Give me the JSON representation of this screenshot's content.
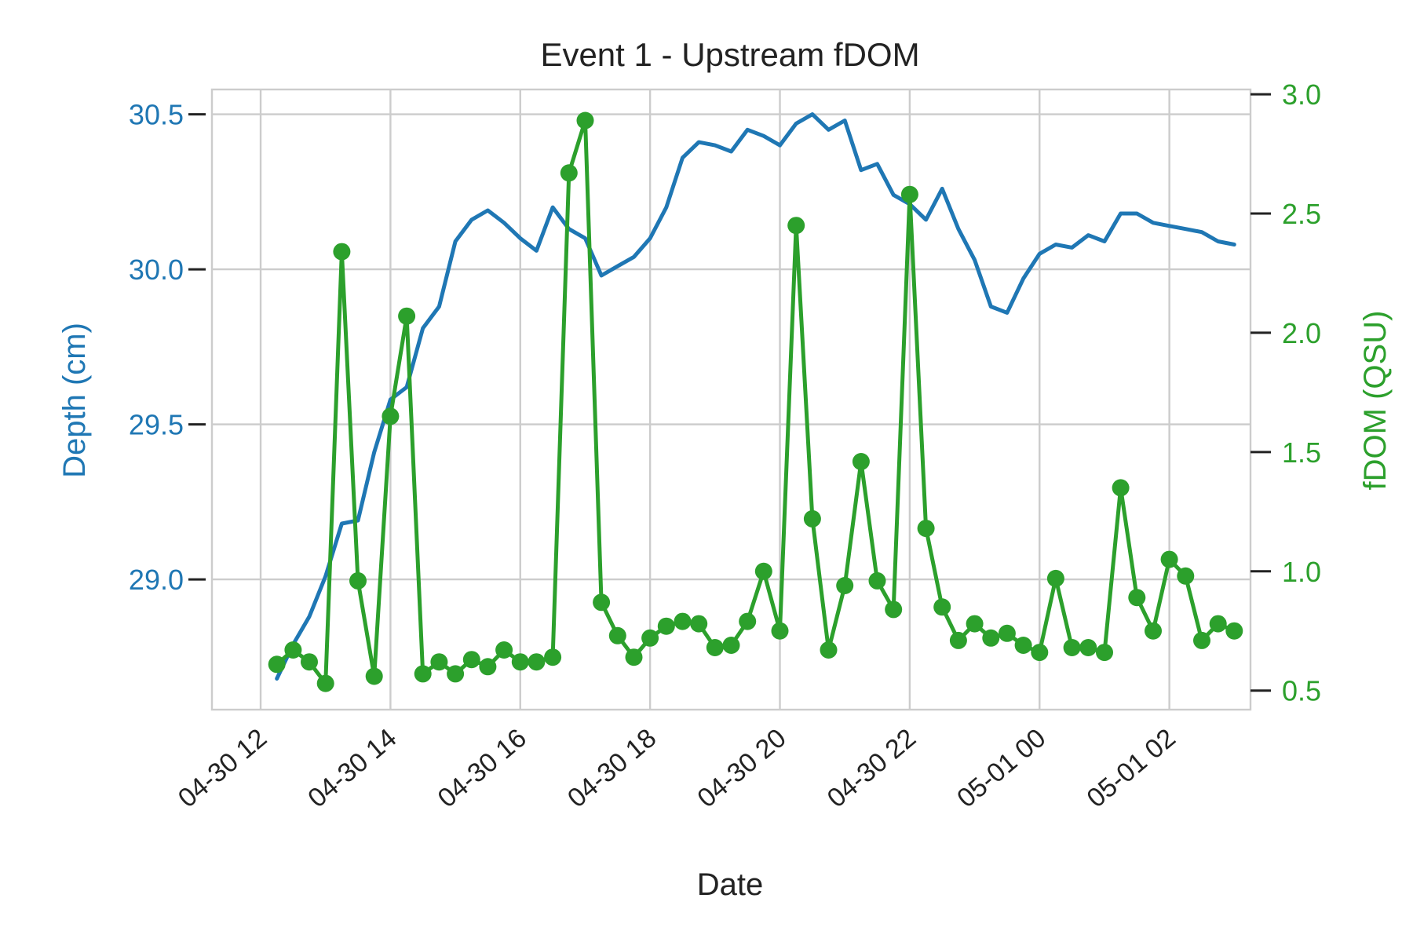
{
  "chart_data": {
    "type": "line",
    "title": "Event 1 - Upstream fDOM",
    "xlabel": "Date",
    "x_axis": {
      "kind": "datetime",
      "range": [
        "2024-04-30T11:15",
        "2024-05-01T03:15"
      ],
      "tick_values": [
        "2024-04-30T12:00",
        "2024-04-30T14:00",
        "2024-04-30T16:00",
        "2024-04-30T18:00",
        "2024-04-30T20:00",
        "2024-04-30T22:00",
        "2024-05-01T00:00",
        "2024-05-01T02:00"
      ],
      "tick_labels": [
        "04-30 12",
        "04-30 14",
        "04-30 16",
        "04-30 18",
        "04-30 20",
        "04-30 22",
        "05-01 00",
        "05-01 02"
      ]
    },
    "y_left": {
      "label": "Depth (cm)",
      "color": "#1f77b4",
      "range": [
        28.58,
        30.58
      ],
      "ticks": [
        29.0,
        29.5,
        30.0,
        30.5
      ],
      "tick_labels": [
        "29.0",
        "29.5",
        "30.0",
        "30.5"
      ]
    },
    "y_right": {
      "label": "fDOM (QSU)",
      "color": "#2ca02c",
      "range": [
        0.42,
        3.02
      ],
      "ticks": [
        0.5,
        1.0,
        1.5,
        2.0,
        2.5,
        3.0
      ],
      "tick_labels": [
        "0.5",
        "1.0",
        "1.5",
        "2.0",
        "2.5",
        "3.0"
      ]
    },
    "grid": true,
    "series": [
      {
        "axis": "left",
        "color": "#1f77b4",
        "markers": false,
        "points": [
          [
            "2024-04-30T12:15",
            28.68
          ],
          [
            "2024-04-30T12:30",
            28.79
          ],
          [
            "2024-04-30T12:45",
            28.88
          ],
          [
            "2024-04-30T13:00",
            29.01
          ],
          [
            "2024-04-30T13:15",
            29.18
          ],
          [
            "2024-04-30T13:30",
            29.19
          ],
          [
            "2024-04-30T13:45",
            29.41
          ],
          [
            "2024-04-30T14:00",
            29.58
          ],
          [
            "2024-04-30T14:15",
            29.62
          ],
          [
            "2024-04-30T14:30",
            29.81
          ],
          [
            "2024-04-30T14:45",
            29.88
          ],
          [
            "2024-04-30T15:00",
            30.09
          ],
          [
            "2024-04-30T15:15",
            30.16
          ],
          [
            "2024-04-30T15:30",
            30.19
          ],
          [
            "2024-04-30T15:45",
            30.15
          ],
          [
            "2024-04-30T16:00",
            30.1
          ],
          [
            "2024-04-30T16:15",
            30.06
          ],
          [
            "2024-04-30T16:30",
            30.2
          ],
          [
            "2024-04-30T16:45",
            30.13
          ],
          [
            "2024-04-30T17:00",
            30.1
          ],
          [
            "2024-04-30T17:15",
            29.98
          ],
          [
            "2024-04-30T17:30",
            30.01
          ],
          [
            "2024-04-30T17:45",
            30.04
          ],
          [
            "2024-04-30T18:00",
            30.1
          ],
          [
            "2024-04-30T18:15",
            30.2
          ],
          [
            "2024-04-30T18:30",
            30.36
          ],
          [
            "2024-04-30T18:45",
            30.41
          ],
          [
            "2024-04-30T19:00",
            30.4
          ],
          [
            "2024-04-30T19:15",
            30.38
          ],
          [
            "2024-04-30T19:30",
            30.45
          ],
          [
            "2024-04-30T19:45",
            30.43
          ],
          [
            "2024-04-30T20:00",
            30.4
          ],
          [
            "2024-04-30T20:15",
            30.47
          ],
          [
            "2024-04-30T20:30",
            30.5
          ],
          [
            "2024-04-30T20:45",
            30.45
          ],
          [
            "2024-04-30T21:00",
            30.48
          ],
          [
            "2024-04-30T21:15",
            30.32
          ],
          [
            "2024-04-30T21:30",
            30.34
          ],
          [
            "2024-04-30T21:45",
            30.24
          ],
          [
            "2024-04-30T22:00",
            30.21
          ],
          [
            "2024-04-30T22:15",
            30.16
          ],
          [
            "2024-04-30T22:30",
            30.26
          ],
          [
            "2024-04-30T22:45",
            30.13
          ],
          [
            "2024-04-30T23:00",
            30.03
          ],
          [
            "2024-04-30T23:15",
            29.88
          ],
          [
            "2024-04-30T23:30",
            29.86
          ],
          [
            "2024-04-30T23:45",
            29.97
          ],
          [
            "2024-05-01T00:00",
            30.05
          ],
          [
            "2024-05-01T00:15",
            30.08
          ],
          [
            "2024-05-01T00:30",
            30.07
          ],
          [
            "2024-05-01T00:45",
            30.11
          ],
          [
            "2024-05-01T01:00",
            30.09
          ],
          [
            "2024-05-01T01:15",
            30.18
          ],
          [
            "2024-05-01T01:30",
            30.18
          ],
          [
            "2024-05-01T01:45",
            30.15
          ],
          [
            "2024-05-01T02:00",
            30.14
          ],
          [
            "2024-05-01T02:15",
            30.13
          ],
          [
            "2024-05-01T02:30",
            30.12
          ],
          [
            "2024-05-01T02:45",
            30.09
          ],
          [
            "2024-05-01T03:00",
            30.08
          ]
        ]
      },
      {
        "axis": "right",
        "color": "#2ca02c",
        "markers": true,
        "points": [
          [
            "2024-04-30T12:15",
            0.61
          ],
          [
            "2024-04-30T12:30",
            0.67
          ],
          [
            "2024-04-30T12:45",
            0.62
          ],
          [
            "2024-04-30T13:00",
            0.53
          ],
          [
            "2024-04-30T13:15",
            2.34
          ],
          [
            "2024-04-30T13:30",
            0.96
          ],
          [
            "2024-04-30T13:45",
            0.56
          ],
          [
            "2024-04-30T14:00",
            1.65
          ],
          [
            "2024-04-30T14:15",
            2.07
          ],
          [
            "2024-04-30T14:30",
            0.57
          ],
          [
            "2024-04-30T14:45",
            0.62
          ],
          [
            "2024-04-30T15:00",
            0.57
          ],
          [
            "2024-04-30T15:15",
            0.63
          ],
          [
            "2024-04-30T15:30",
            0.6
          ],
          [
            "2024-04-30T15:45",
            0.67
          ],
          [
            "2024-04-30T16:00",
            0.62
          ],
          [
            "2024-04-30T16:15",
            0.62
          ],
          [
            "2024-04-30T16:30",
            0.64
          ],
          [
            "2024-04-30T16:45",
            2.67
          ],
          [
            "2024-04-30T17:00",
            2.89
          ],
          [
            "2024-04-30T17:15",
            0.87
          ],
          [
            "2024-04-30T17:30",
            0.73
          ],
          [
            "2024-04-30T17:45",
            0.64
          ],
          [
            "2024-04-30T18:00",
            0.72
          ],
          [
            "2024-04-30T18:15",
            0.77
          ],
          [
            "2024-04-30T18:30",
            0.79
          ],
          [
            "2024-04-30T18:45",
            0.78
          ],
          [
            "2024-04-30T19:00",
            0.68
          ],
          [
            "2024-04-30T19:15",
            0.69
          ],
          [
            "2024-04-30T19:30",
            0.79
          ],
          [
            "2024-04-30T19:45",
            1.0
          ],
          [
            "2024-04-30T20:00",
            0.75
          ],
          [
            "2024-04-30T20:15",
            2.45
          ],
          [
            "2024-04-30T20:30",
            1.22
          ],
          [
            "2024-04-30T20:45",
            0.67
          ],
          [
            "2024-04-30T21:00",
            0.94
          ],
          [
            "2024-04-30T21:15",
            1.46
          ],
          [
            "2024-04-30T21:30",
            0.96
          ],
          [
            "2024-04-30T21:45",
            0.84
          ],
          [
            "2024-04-30T22:00",
            2.58
          ],
          [
            "2024-04-30T22:15",
            1.18
          ],
          [
            "2024-04-30T22:30",
            0.85
          ],
          [
            "2024-04-30T22:45",
            0.71
          ],
          [
            "2024-04-30T23:00",
            0.78
          ],
          [
            "2024-04-30T23:15",
            0.72
          ],
          [
            "2024-04-30T23:30",
            0.74
          ],
          [
            "2024-04-30T23:45",
            0.69
          ],
          [
            "2024-05-01T00:00",
            0.66
          ],
          [
            "2024-05-01T00:15",
            0.97
          ],
          [
            "2024-05-01T00:30",
            0.68
          ],
          [
            "2024-05-01T00:45",
            0.68
          ],
          [
            "2024-05-01T01:00",
            0.66
          ],
          [
            "2024-05-01T01:15",
            1.35
          ],
          [
            "2024-05-01T01:30",
            0.89
          ],
          [
            "2024-05-01T01:45",
            0.75
          ],
          [
            "2024-05-01T02:00",
            1.05
          ],
          [
            "2024-05-01T02:15",
            0.98
          ],
          [
            "2024-05-01T02:30",
            0.71
          ],
          [
            "2024-05-01T02:45",
            0.78
          ],
          [
            "2024-05-01T03:00",
            0.75
          ]
        ]
      }
    ]
  }
}
